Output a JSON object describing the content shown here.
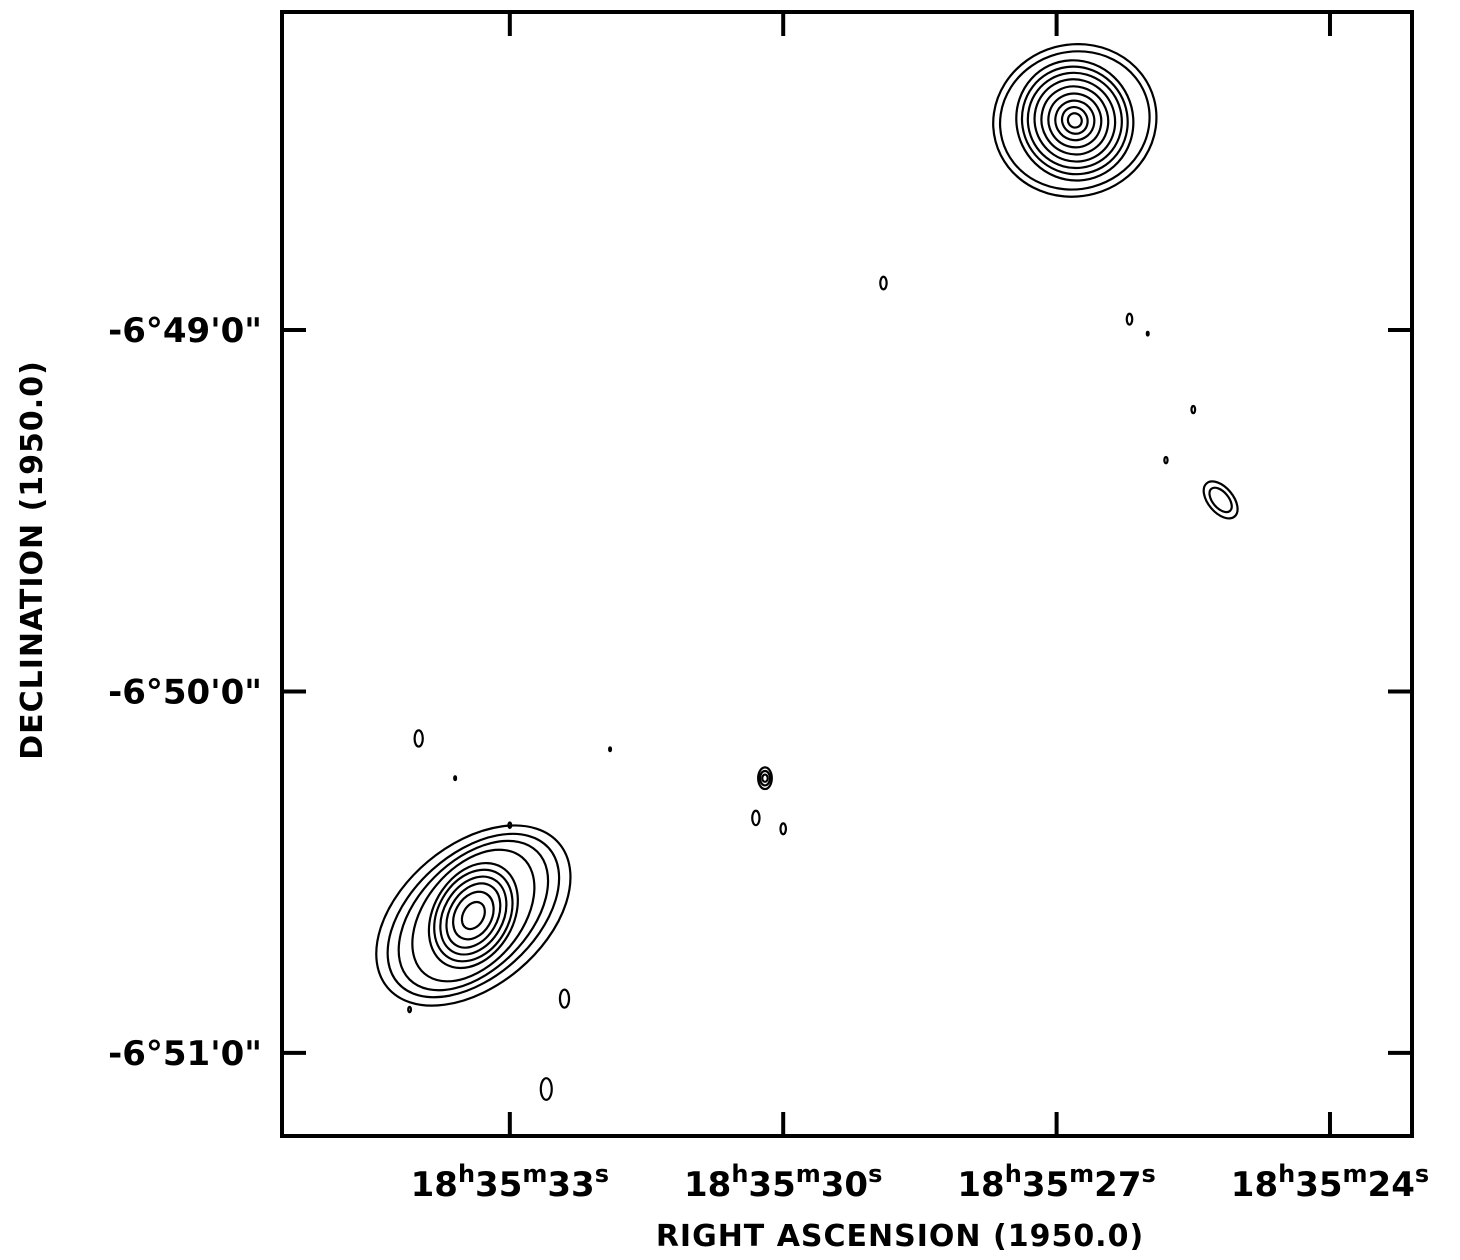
{
  "chart_data": {
    "type": "contour",
    "title": "",
    "xlabel": "RIGHT ASCENSION (1950.0)",
    "ylabel": "DECLINATION (1950.0)",
    "x_ticks": [
      {
        "value": 33,
        "label_h": "18",
        "label_m": "35",
        "label_s": "33"
      },
      {
        "value": 30,
        "label_h": "18",
        "label_m": "35",
        "label_s": "30"
      },
      {
        "value": 27,
        "label_h": "18",
        "label_m": "35",
        "label_s": "27"
      },
      {
        "value": 24,
        "label_h": "18",
        "label_m": "35",
        "label_s": "24"
      }
    ],
    "y_ticks": [
      {
        "value": -49,
        "label": "-6°49'0\""
      },
      {
        "value": -50,
        "label": "-6°50'0\""
      },
      {
        "value": -51,
        "label": "-6°51'0\""
      }
    ],
    "x_unit_symbols": {
      "h": "h",
      "m": "m",
      "s": "s"
    },
    "xlim": [
      35.5,
      23.1
    ],
    "ylim_arcmin": [
      -51.23,
      -48.12
    ],
    "sources": [
      {
        "name": "",
        "ra_s": 26.8,
        "dec_arcmin": -48.42,
        "levels": [
          {
            "w": 0.3,
            "h": 0.04,
            "rot": -30
          },
          {
            "w": 0.55,
            "h": 0.075,
            "rot": -30
          },
          {
            "w": 0.85,
            "h": 0.11,
            "rot": -30
          },
          {
            "w": 1.15,
            "h": 0.15,
            "rot": -30
          },
          {
            "w": 1.45,
            "h": 0.19,
            "rot": -30
          },
          {
            "w": 1.75,
            "h": 0.23,
            "rot": -30
          },
          {
            "w": 2.05,
            "h": 0.265,
            "rot": -30
          },
          {
            "w": 2.3,
            "h": 0.3,
            "rot": -30
          },
          {
            "w": 2.55,
            "h": 0.335,
            "rot": -25
          },
          {
            "w": 3.3,
            "h": 0.38,
            "rot": -15
          },
          {
            "w": 3.6,
            "h": 0.42,
            "rot": -15
          }
        ]
      },
      {
        "name": "",
        "ra_s": 33.4,
        "dec_arcmin": -50.62,
        "levels": [
          {
            "w": 0.45,
            "h": 0.08,
            "rot": 30
          },
          {
            "w": 0.8,
            "h": 0.14,
            "rot": 30
          },
          {
            "w": 1.05,
            "h": 0.19,
            "rot": 30
          },
          {
            "w": 1.3,
            "h": 0.23,
            "rot": 30
          },
          {
            "w": 1.55,
            "h": 0.27,
            "rot": 30
          },
          {
            "w": 1.75,
            "h": 0.31,
            "rot": 30
          },
          {
            "w": 2.1,
            "h": 0.42,
            "rot": 40
          },
          {
            "w": 2.4,
            "h": 0.5,
            "rot": 45
          },
          {
            "w": 2.7,
            "h": 0.56,
            "rot": 48
          },
          {
            "w": 3.1,
            "h": 0.62,
            "rot": 50
          }
        ]
      },
      {
        "name": "",
        "ra_s": 30.2,
        "dec_arcmin": -50.24,
        "levels": [
          {
            "w": 0.12,
            "h": 0.02,
            "rot": 0
          },
          {
            "w": 0.22,
            "h": 0.04,
            "rot": 0
          },
          {
            "w": 0.3,
            "h": 0.06,
            "rot": 0
          }
        ]
      },
      {
        "name": "",
        "ra_s": 25.2,
        "dec_arcmin": -49.47,
        "levels": [
          {
            "w": 0.35,
            "h": 0.08,
            "rot": -40
          },
          {
            "w": 0.55,
            "h": 0.12,
            "rot": -40
          }
        ]
      }
    ],
    "small_features": [
      {
        "ra_s": 28.9,
        "dec_arcmin": -48.87,
        "r": 0.07
      },
      {
        "ra_s": 26.2,
        "dec_arcmin": -48.97,
        "r": 0.06
      },
      {
        "ra_s": 25.5,
        "dec_arcmin": -49.22,
        "r": 0.04
      },
      {
        "ra_s": 25.8,
        "dec_arcmin": -49.36,
        "r": 0.035
      },
      {
        "ra_s": 26.0,
        "dec_arcmin": -49.01,
        "r": 0.02
      },
      {
        "ra_s": 34.0,
        "dec_arcmin": -50.13,
        "r": 0.09
      },
      {
        "ra_s": 33.0,
        "dec_arcmin": -50.37,
        "r": 0.03
      },
      {
        "ra_s": 31.9,
        "dec_arcmin": -50.16,
        "r": 0.02
      },
      {
        "ra_s": 30.3,
        "dec_arcmin": -50.35,
        "r": 0.08
      },
      {
        "ra_s": 30.0,
        "dec_arcmin": -50.38,
        "r": 0.06
      },
      {
        "ra_s": 33.6,
        "dec_arcmin": -50.24,
        "r": 0.02
      },
      {
        "ra_s": 34.1,
        "dec_arcmin": -50.88,
        "r": 0.03
      },
      {
        "ra_s": 32.4,
        "dec_arcmin": -50.85,
        "r": 0.1
      },
      {
        "ra_s": 32.6,
        "dec_arcmin": -51.1,
        "r": 0.12
      }
    ]
  }
}
